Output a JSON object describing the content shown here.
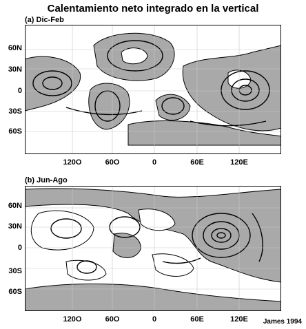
{
  "title": "Calentamiento neto integrado en la vertical",
  "credit": "James 1994",
  "panels": [
    {
      "label": "(a) Dic-Feb",
      "lat_labels": [
        "60N",
        "30N",
        "0",
        "30S",
        "60S"
      ],
      "lon_labels": [
        "120O",
        "60O",
        "0",
        "60E",
        "120E"
      ]
    },
    {
      "label": "(b) Jun-Ago",
      "lat_labels": [
        "60N",
        "30N",
        "0",
        "30S",
        "60S"
      ],
      "lon_labels": [
        "120O",
        "60O",
        "0",
        "60E",
        "120E"
      ]
    }
  ],
  "colors": {
    "shade": "#a9a9a9",
    "grid": "#c8c8c8",
    "frame": "#000000",
    "contour": "#000000"
  }
}
